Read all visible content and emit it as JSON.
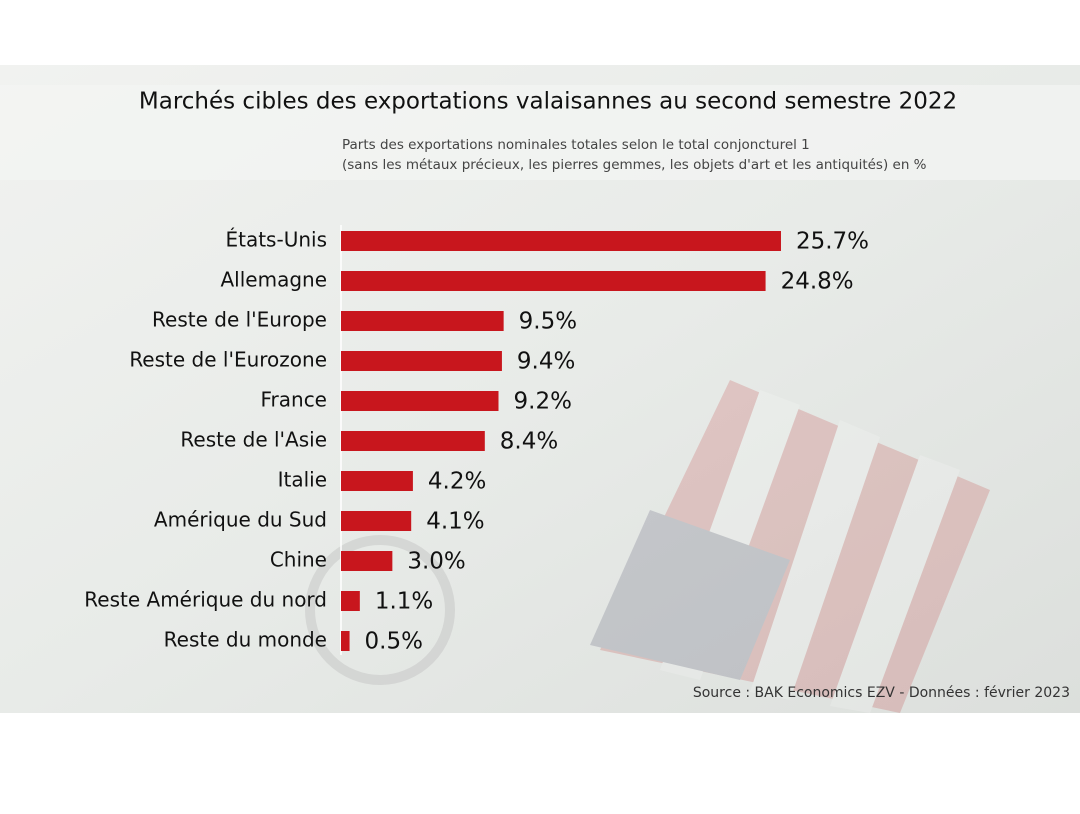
{
  "chart_data": {
    "type": "bar",
    "title": "Marchés cibles des exportations valaisannes au second semestre 2022",
    "subtitle": [
      "Parts des exportations nominales totales selon le total conjoncturel 1",
      "(sans les métaux précieux, les pierres gemmes, les objets d'art et les antiquités) en %"
    ],
    "categories": [
      "États-Unis",
      "Allemagne",
      "Reste de l'Europe",
      "Reste de l'Eurozone",
      "France",
      "Reste de l'Asie",
      "Italie",
      "Amérique du Sud",
      "Chine",
      "Reste Amérique du nord",
      "Reste du monde"
    ],
    "values": [
      25.7,
      24.8,
      9.5,
      9.4,
      9.2,
      8.4,
      4.2,
      4.1,
      3.0,
      1.1,
      0.5
    ],
    "value_labels": [
      "25.7%",
      "24.8%",
      "9.5%",
      "9.4%",
      "9.2%",
      "8.4%",
      "4.2%",
      "4.1%",
      "3.0%",
      "1.1%",
      "0.5%"
    ],
    "color": "#c8161d",
    "source": "Source : BAK Economics EZV - Données : février 2023"
  }
}
